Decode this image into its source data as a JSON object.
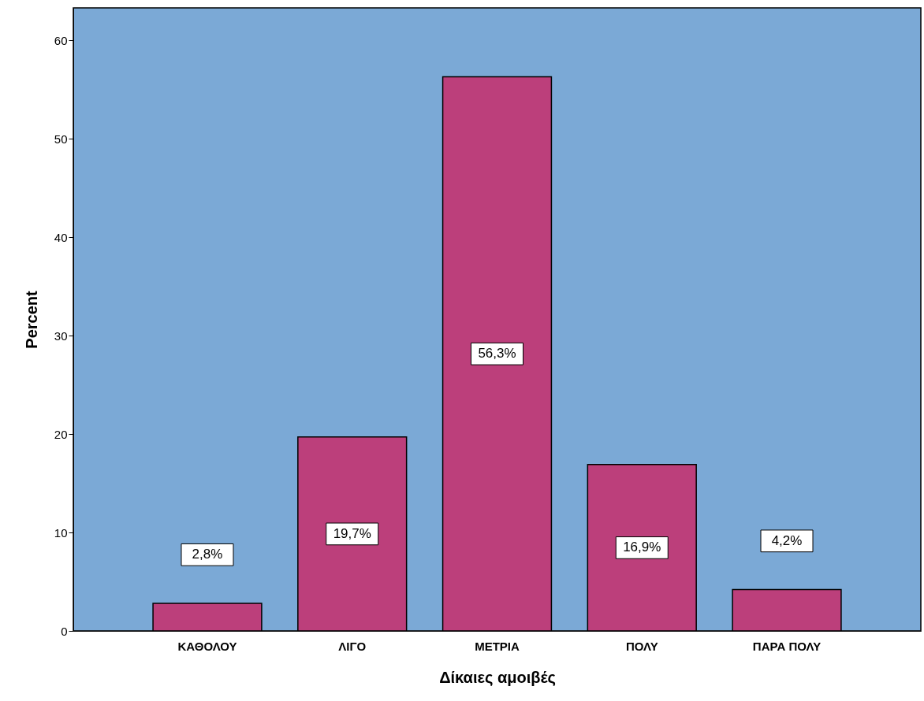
{
  "chart_data": {
    "type": "bar",
    "xlabel": "Δίκαιες αμοιβές",
    "ylabel": "Percent",
    "categories": [
      "ΚΑΘΟΛΟΥ",
      "ΛΙΓΟ",
      "ΜΕΤΡΙΑ",
      "ΠΟΛΥ",
      "ΠΑΡΑ ΠΟΛΥ"
    ],
    "values": [
      2.8,
      19.7,
      56.3,
      16.9,
      4.2
    ],
    "value_labels": [
      "2,8%",
      "19,7%",
      "56,3%",
      "16,9%",
      "4,2%"
    ],
    "color": "#bc3f7b",
    "ylim": [
      0,
      63.3
    ],
    "yticks": [
      0,
      10,
      20,
      30,
      40,
      50,
      60
    ]
  }
}
